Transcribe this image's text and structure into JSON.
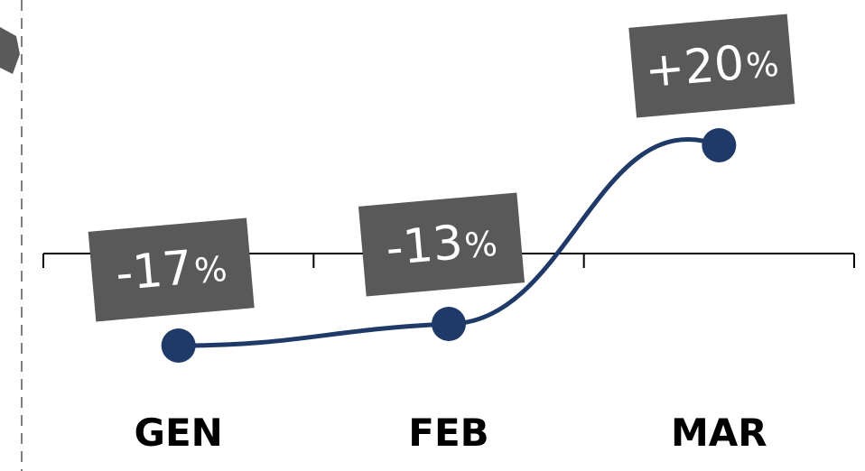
{
  "chart_data": {
    "type": "line",
    "categories": [
      "GEN",
      "FEB",
      "MAR"
    ],
    "values": [
      -17,
      -13,
      20
    ],
    "data_labels": [
      {
        "number": "-17",
        "unit": "%"
      },
      {
        "number": "-13",
        "unit": "%"
      },
      {
        "number": "+20",
        "unit": "%"
      }
    ],
    "ylim": [
      -30,
      30
    ],
    "grid": false,
    "legend": "none",
    "colors": {
      "line": "#1f3a68",
      "label_box": "#595959",
      "label_text": "#ffffff",
      "axis": "#000000",
      "dashed_guide": "#7f7f7f"
    }
  }
}
